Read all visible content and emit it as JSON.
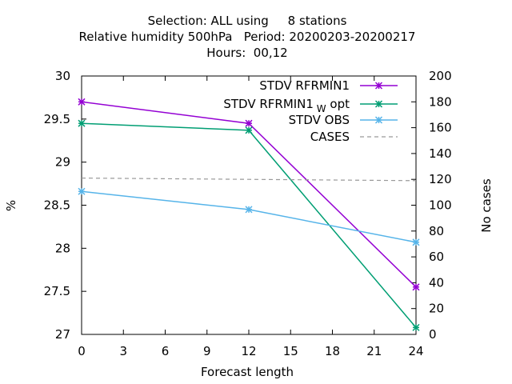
{
  "chart_data": {
    "type": "line",
    "title_lines": [
      "Selection: ALL using     8 stations",
      "Relative humidity 500hPa   Period: 20200203-20200217",
      "Hours:  00,12"
    ],
    "xlabel": "Forecast length",
    "ylabel": "%",
    "y2label": "No cases",
    "x_ticks": [
      0,
      3,
      6,
      9,
      12,
      15,
      18,
      21,
      24
    ],
    "xlim": [
      0,
      24
    ],
    "y_ticks": [
      "27",
      "27.5",
      "28",
      "28.5",
      "29",
      "29.5",
      "30"
    ],
    "ylim": [
      27,
      30
    ],
    "y2_ticks": [
      0,
      20,
      40,
      60,
      80,
      100,
      120,
      140,
      160,
      180,
      200
    ],
    "y2lim": [
      0,
      200
    ],
    "legend_position": "top-right",
    "grid": false,
    "series": [
      {
        "name": "STDV RFRMIN1",
        "name_sub": "",
        "name_suffix": "",
        "axis": "y1",
        "color": "#9400d3",
        "style": "solid",
        "marker": "star",
        "x": [
          0,
          12,
          24
        ],
        "y": [
          29.7,
          29.45,
          27.55
        ]
      },
      {
        "name": "STDV RFRMIN1",
        "name_sub": "W",
        "name_suffix": "opt",
        "axis": "y1",
        "color": "#009e73",
        "style": "solid",
        "marker": "star",
        "x": [
          0,
          12,
          24
        ],
        "y": [
          29.45,
          29.37,
          27.08
        ]
      },
      {
        "name": "STDV OBS",
        "name_sub": "",
        "name_suffix": "",
        "axis": "y1",
        "color": "#56b4e9",
        "style": "solid",
        "marker": "star",
        "x": [
          0,
          12,
          24
        ],
        "y": [
          28.66,
          28.45,
          28.07
        ]
      },
      {
        "name": "CASES",
        "name_sub": "",
        "name_suffix": "",
        "axis": "y2",
        "color": "#999999",
        "style": "dashed",
        "marker": "none",
        "x": [
          0,
          12,
          24
        ],
        "y": [
          121,
          120,
          119
        ]
      }
    ]
  }
}
